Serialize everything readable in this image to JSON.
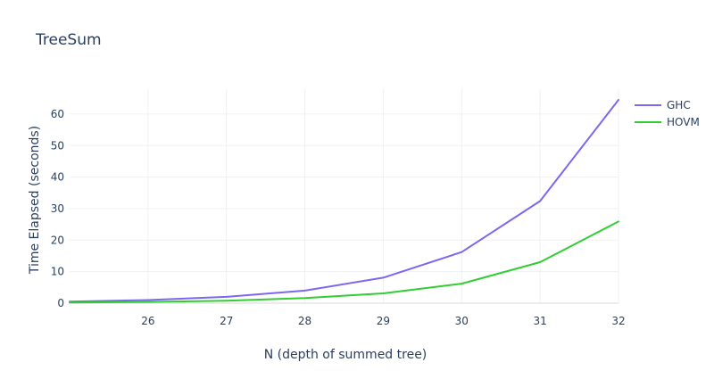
{
  "chart_data": {
    "type": "line",
    "title": "TreeSum",
    "xlabel": "N (depth of summed tree)",
    "ylabel": "Time Elapsed (seconds)",
    "x": [
      25,
      26,
      27,
      28,
      29,
      30,
      31,
      32
    ],
    "xlim": [
      25,
      32
    ],
    "ylim": [
      0,
      64.5
    ],
    "xticks": [
      26,
      27,
      28,
      29,
      30,
      31,
      32
    ],
    "yticks": [
      0,
      10,
      20,
      30,
      40,
      50,
      60
    ],
    "grid": true,
    "legend_position": "top-right",
    "series": [
      {
        "name": "GHC",
        "color": "#7b68ee",
        "values": [
          0.5,
          1.0,
          2.0,
          4.0,
          8.1,
          16.2,
          32.4,
          64.5
        ]
      },
      {
        "name": "HOVM",
        "color": "#32cd32",
        "values": [
          0.2,
          0.4,
          0.8,
          1.6,
          3.1,
          6.2,
          13.0,
          25.9
        ]
      }
    ]
  }
}
